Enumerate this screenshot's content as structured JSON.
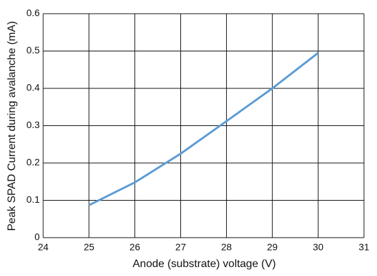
{
  "chart_data": {
    "type": "line",
    "x_label": "Anode (substrate) voltage (V)",
    "y_label": "Peak SPAD Current during avalanche (mA)",
    "x": [
      25,
      26,
      27,
      28,
      29,
      30
    ],
    "series": [
      {
        "color": "#5b9bd5",
        "values": [
          0.087,
          0.148,
          0.225,
          0.312,
          0.4,
          0.495
        ]
      }
    ],
    "xlim": [
      24,
      31
    ],
    "xticks": [
      24,
      25,
      26,
      27,
      28,
      29,
      30,
      31
    ],
    "ylim": [
      0,
      0.6
    ],
    "yticks": [
      0,
      0.1,
      0.2,
      0.3,
      0.4,
      0.5,
      0.6
    ],
    "grid": true
  }
}
